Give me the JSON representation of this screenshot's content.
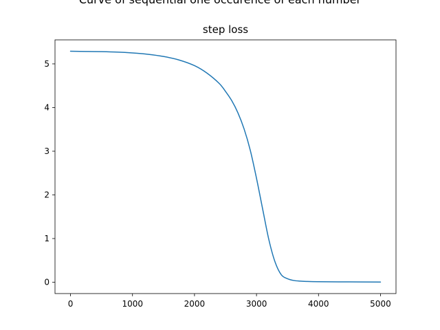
{
  "chart_data": {
    "type": "line",
    "suptitle": "Curve of sequential one occurence of each number",
    "title": "step loss",
    "xlabel": "",
    "ylabel": "",
    "xlim": [
      -250,
      5250
    ],
    "ylim": [
      -0.26,
      5.55
    ],
    "xticks": [
      0,
      1000,
      2000,
      3000,
      4000,
      5000
    ],
    "yticks": [
      0,
      1,
      2,
      3,
      4,
      5
    ],
    "grid": false,
    "line_color": "#1f77b4",
    "series": [
      {
        "x": [
          0,
          250,
          500,
          750,
          1000,
          1250,
          1500,
          1750,
          2000,
          2200,
          2400,
          2500,
          2600,
          2700,
          2800,
          2900,
          3000,
          3100,
          3200,
          3300,
          3400,
          3500,
          3600,
          3700,
          3800,
          4000,
          4500,
          5000
        ],
        "y": [
          5.29,
          5.285,
          5.28,
          5.27,
          5.25,
          5.22,
          5.17,
          5.09,
          4.96,
          4.79,
          4.55,
          4.37,
          4.16,
          3.88,
          3.51,
          3.02,
          2.38,
          1.67,
          0.97,
          0.46,
          0.17,
          0.08,
          0.04,
          0.025,
          0.018,
          0.012,
          0.007,
          0.004
        ]
      }
    ]
  }
}
